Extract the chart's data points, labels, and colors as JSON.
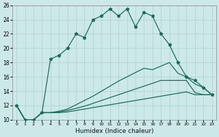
{
  "xlabel": "Humidex (Indice chaleur)",
  "xlim": [
    -0.5,
    23.5
  ],
  "ylim": [
    10,
    26
  ],
  "background_color": "#cce8e8",
  "line_color": "#1a6b5a",
  "grid_color": "#aacfcf",
  "line1_y": [
    12,
    10,
    10,
    11,
    18.5,
    19,
    20,
    22,
    21.5,
    24,
    24.5,
    25.5,
    24.5,
    25.5,
    23,
    25,
    24.5,
    22,
    20.5,
    18,
    16,
    15.5,
    14.5,
    13.5
  ],
  "line2_y": [
    12,
    10,
    10,
    11,
    11,
    11.2,
    11.5,
    12.1,
    12.7,
    13.3,
    14.0,
    14.7,
    15.4,
    16.0,
    16.6,
    17.2,
    17.0,
    17.5,
    18.0,
    16.5,
    16.0,
    15.0,
    14.5,
    13.5
  ],
  "line3_y": [
    12,
    10,
    10,
    11,
    11,
    11.1,
    11.3,
    11.6,
    11.9,
    12.3,
    12.7,
    13.1,
    13.5,
    13.9,
    14.3,
    14.7,
    15.1,
    15.5,
    15.5,
    15.5,
    15.5,
    13.8,
    13.5,
    13.5
  ],
  "line4_y": [
    12,
    10,
    10,
    11,
    11,
    11.0,
    11.1,
    11.3,
    11.5,
    11.7,
    11.9,
    12.1,
    12.3,
    12.5,
    12.7,
    12.9,
    13.1,
    13.3,
    13.5,
    13.7,
    13.9,
    13.5,
    13.5,
    13.5
  ]
}
